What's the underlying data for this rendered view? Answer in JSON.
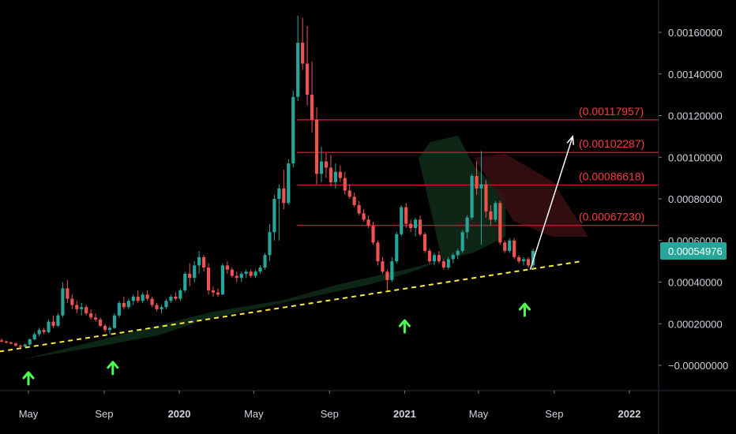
{
  "colors": {
    "background": "#000000",
    "up": "#26a69a",
    "down": "#ef5350",
    "fib_line": "#c8102e",
    "fib_text": "#ff3b3b",
    "trendline": "#ffeb3b",
    "arrow": "#4cff4c",
    "projection": "#ffffff",
    "price_label_bg": "#26a69a",
    "cloud_green": "#0f2a18",
    "cloud_red": "#3a0f12"
  },
  "chart_data": {
    "type": "candlestick",
    "y_axis": {
      "position": "right",
      "ticks": [
        "0.00160000",
        "0.00140000",
        "0.00120000",
        "0.00100000",
        "0.00080000",
        "0.00060000",
        "0.00040000",
        "0.00020000",
        "−0.00000000"
      ],
      "tick_values": [
        0.0016,
        0.0014,
        0.0012,
        0.001,
        0.0008,
        0.0006,
        0.0004,
        0.0002,
        0.0
      ]
    },
    "x_axis": {
      "ticks": [
        {
          "label": "May",
          "date": "2019-05-01",
          "bold": false
        },
        {
          "label": "Sep",
          "date": "2019-09-01",
          "bold": false
        },
        {
          "label": "2020",
          "date": "2020-01-01",
          "bold": true
        },
        {
          "label": "May",
          "date": "2020-05-01",
          "bold": false
        },
        {
          "label": "Sep",
          "date": "2020-09-01",
          "bold": false
        },
        {
          "label": "2021",
          "date": "2021-01-01",
          "bold": true
        },
        {
          "label": "May",
          "date": "2021-05-01",
          "bold": false
        },
        {
          "label": "Sep",
          "date": "2021-09-01",
          "bold": false
        },
        {
          "label": "2022",
          "date": "2022-01-01",
          "bold": true
        }
      ]
    },
    "last_price": "0.00054976",
    "fib_levels": [
      {
        "label": "(0.00117957)",
        "value": 0.00117957
      },
      {
        "label": "(0.00102287)",
        "value": 0.00102287
      },
      {
        "label": "(0.00086618)",
        "value": 0.00086618
      },
      {
        "label": "(0.00067230)",
        "value": 0.0006723
      }
    ],
    "trendline": {
      "start": {
        "date": "2019-03-01",
        "value": 6e-05
      },
      "end": {
        "date": "2021-10-15",
        "value": 0.0005
      }
    },
    "support_arrows": [
      {
        "date": "2019-05-01",
        "value": 0.0
      },
      {
        "date": "2019-09-15",
        "value": 5e-05
      },
      {
        "date": "2021-01-01",
        "value": 0.00025
      },
      {
        "date": "2021-07-15",
        "value": 0.00033
      }
    ],
    "projection": {
      "from": {
        "date": "2021-07-24",
        "value": 0.00046
      },
      "to": {
        "date": "2021-10-01",
        "value": 0.0011
      }
    },
    "candles": [
      [
        0.00012,
        0.00013,
        0.00011,
        0.000115
      ],
      [
        0.000115,
        0.00012,
        0.000105,
        0.00011
      ],
      [
        0.00011,
        0.000115,
        0.0001,
        0.000105
      ],
      [
        0.000105,
        0.00011,
        9e-05,
        9.5e-05
      ],
      [
        9.5e-05,
        0.0001,
        8.5e-05,
        9e-05
      ],
      [
        9e-05,
        0.000105,
        8.5e-05,
        0.0001
      ],
      [
        0.0001,
        0.00013,
        9.5e-05,
        0.000125
      ],
      [
        0.000125,
        0.00016,
        0.00012,
        0.00015
      ],
      [
        0.00015,
        0.00018,
        0.00014,
        0.00017
      ],
      [
        0.00017,
        0.00018,
        0.00015,
        0.00016
      ],
      [
        0.00016,
        0.00022,
        0.000155,
        0.00021
      ],
      [
        0.00021,
        0.00024,
        0.00018,
        0.00019
      ],
      [
        0.00019,
        0.00025,
        0.000185,
        0.00024
      ],
      [
        0.00024,
        0.0004,
        0.00023,
        0.00037
      ],
      [
        0.00037,
        0.00041,
        0.0003,
        0.00032
      ],
      [
        0.00032,
        0.00034,
        0.00027,
        0.00029
      ],
      [
        0.00029,
        0.00031,
        0.00025,
        0.00027
      ],
      [
        0.00027,
        0.0003,
        0.00024,
        0.00028
      ],
      [
        0.00028,
        0.00029,
        0.00024,
        0.00025
      ],
      [
        0.00025,
        0.00027,
        0.00022,
        0.00023
      ],
      [
        0.00023,
        0.00025,
        0.00021,
        0.00022
      ],
      [
        0.00022,
        0.00023,
        0.000185,
        0.00019
      ],
      [
        0.00019,
        0.0002,
        0.00016,
        0.00017
      ],
      [
        0.00017,
        0.00019,
        0.00015,
        0.00018
      ],
      [
        0.00018,
        0.00025,
        0.000175,
        0.00024
      ],
      [
        0.00024,
        0.00031,
        0.00023,
        0.0003
      ],
      [
        0.0003,
        0.00033,
        0.00027,
        0.00028
      ],
      [
        0.00028,
        0.00032,
        0.00027,
        0.00031
      ],
      [
        0.00031,
        0.00034,
        0.00029,
        0.00033
      ],
      [
        0.00033,
        0.00036,
        0.0003,
        0.00031
      ],
      [
        0.00031,
        0.00035,
        0.0003,
        0.00034
      ],
      [
        0.00034,
        0.00036,
        0.00031,
        0.00032
      ],
      [
        0.00032,
        0.00033,
        0.00028,
        0.00029
      ],
      [
        0.00029,
        0.0003,
        0.00026,
        0.00027
      ],
      [
        0.00027,
        0.00029,
        0.00025,
        0.00028
      ],
      [
        0.00028,
        0.00032,
        0.00027,
        0.00031
      ],
      [
        0.00031,
        0.00034,
        0.0003,
        0.00033
      ],
      [
        0.00033,
        0.00035,
        0.00031,
        0.00032
      ],
      [
        0.00032,
        0.00037,
        0.00031,
        0.00036
      ],
      [
        0.00036,
        0.00045,
        0.00035,
        0.00044
      ],
      [
        0.00044,
        0.00049,
        0.00038,
        0.00042
      ],
      [
        0.00042,
        0.0005,
        0.0004,
        0.00048
      ],
      [
        0.00048,
        0.00055,
        0.00044,
        0.00052
      ],
      [
        0.00052,
        0.00053,
        0.00045,
        0.00047
      ],
      [
        0.00047,
        0.00049,
        0.00034,
        0.00036
      ],
      [
        0.00036,
        0.00038,
        0.00033,
        0.00035
      ],
      [
        0.00035,
        0.00037,
        0.00033,
        0.00034
      ],
      [
        0.00034,
        0.00049,
        0.00034,
        0.00048
      ],
      [
        0.00048,
        0.0005,
        0.00044,
        0.00046
      ],
      [
        0.00046,
        0.00047,
        0.00042,
        0.00043
      ],
      [
        0.00043,
        0.00045,
        0.0004,
        0.00042
      ],
      [
        0.00042,
        0.00045,
        0.0004,
        0.00044
      ],
      [
        0.00044,
        0.00046,
        0.00042,
        0.00045
      ],
      [
        0.00045,
        0.00046,
        0.00042,
        0.00043
      ],
      [
        0.00043,
        0.00046,
        0.00042,
        0.00045
      ],
      [
        0.00045,
        0.00048,
        0.00044,
        0.00047
      ],
      [
        0.00047,
        0.00054,
        0.00046,
        0.00053
      ],
      [
        0.00053,
        0.00068,
        0.0005,
        0.00064
      ],
      [
        0.00064,
        0.00082,
        0.0006,
        0.0008
      ],
      [
        0.0008,
        0.00087,
        0.0006,
        0.00085
      ],
      [
        0.00085,
        0.00094,
        0.00075,
        0.00078
      ],
      [
        0.00078,
        0.00099,
        0.00077,
        0.00097
      ],
      [
        0.00097,
        0.00132,
        0.00095,
        0.00129
      ],
      [
        0.00129,
        0.00168,
        0.00127,
        0.00155
      ],
      [
        0.00155,
        0.00167,
        0.00142,
        0.00145
      ],
      [
        0.00145,
        0.00163,
        0.00125,
        0.0013
      ],
      [
        0.0013,
        0.00146,
        0.00112,
        0.00118
      ],
      [
        0.00118,
        0.00124,
        0.00087,
        0.00092
      ],
      [
        0.00092,
        0.00105,
        0.00088,
        0.00098
      ],
      [
        0.00098,
        0.00102,
        0.0009,
        0.00095
      ],
      [
        0.00095,
        0.00101,
        0.00086,
        0.00088
      ],
      [
        0.00088,
        0.00097,
        0.00085,
        0.00093
      ],
      [
        0.00093,
        0.00096,
        0.00088,
        0.0009
      ],
      [
        0.0009,
        0.00093,
        0.00082,
        0.00084
      ],
      [
        0.00084,
        0.00087,
        0.0008,
        0.00081
      ],
      [
        0.00081,
        0.00083,
        0.00076,
        0.00077
      ],
      [
        0.00077,
        0.00079,
        0.00072,
        0.00073
      ],
      [
        0.00073,
        0.00075,
        0.00069,
        0.0007
      ],
      [
        0.0007,
        0.00072,
        0.00066,
        0.00067
      ],
      [
        0.00067,
        0.00069,
        0.00058,
        0.00059
      ],
      [
        0.00059,
        0.0006,
        0.00048,
        0.0005
      ],
      [
        0.0005,
        0.00052,
        0.00044,
        0.00045
      ],
      [
        0.00045,
        0.00046,
        0.00036,
        0.00041
      ],
      [
        0.00041,
        0.00052,
        0.0004,
        0.0005
      ],
      [
        0.0005,
        0.00064,
        0.00049,
        0.00063
      ],
      [
        0.00063,
        0.00077,
        0.00062,
        0.00076
      ],
      [
        0.00076,
        0.00078,
        0.00066,
        0.00068
      ],
      [
        0.00068,
        0.0007,
        0.00064,
        0.00066
      ],
      [
        0.00066,
        0.00071,
        0.00062,
        0.0007
      ],
      [
        0.0007,
        0.00072,
        0.00062,
        0.00063
      ],
      [
        0.00063,
        0.00064,
        0.00054,
        0.00055
      ],
      [
        0.00055,
        0.00056,
        0.00049,
        0.0005
      ],
      [
        0.0005,
        0.00054,
        0.00048,
        0.00053
      ],
      [
        0.00053,
        0.00055,
        0.00049,
        0.0005
      ],
      [
        0.0005,
        0.00051,
        0.00046,
        0.00047
      ],
      [
        0.00047,
        0.00052,
        0.00046,
        0.00051
      ],
      [
        0.00051,
        0.00054,
        0.00049,
        0.00053
      ],
      [
        0.00053,
        0.00056,
        0.00051,
        0.00055
      ],
      [
        0.00055,
        0.00065,
        0.00054,
        0.00064
      ],
      [
        0.00064,
        0.00072,
        0.00061,
        0.00071
      ],
      [
        0.00071,
        0.00092,
        0.0007,
        0.00091
      ],
      [
        0.00091,
        0.00098,
        0.00082,
        0.00085
      ],
      [
        0.00085,
        0.00103,
        0.00058,
        0.00087
      ],
      [
        0.00087,
        0.00089,
        0.00071,
        0.00074
      ],
      [
        0.00074,
        0.00077,
        0.00067,
        0.0007
      ],
      [
        0.0007,
        0.00079,
        0.00069,
        0.00078
      ],
      [
        0.00078,
        0.00079,
        0.00058,
        0.00059
      ],
      [
        0.00059,
        0.0006,
        0.00054,
        0.00055
      ],
      [
        0.00055,
        0.00061,
        0.00054,
        0.0006
      ],
      [
        0.0006,
        0.00061,
        0.00051,
        0.00052
      ],
      [
        0.00052,
        0.00053,
        0.00049,
        0.0005
      ],
      [
        0.0005,
        0.00052,
        0.00048,
        0.00051
      ],
      [
        0.00051,
        0.00052,
        0.00047,
        0.00048
      ],
      [
        0.00048,
        0.00056,
        0.00047,
        0.00055
      ]
    ]
  }
}
